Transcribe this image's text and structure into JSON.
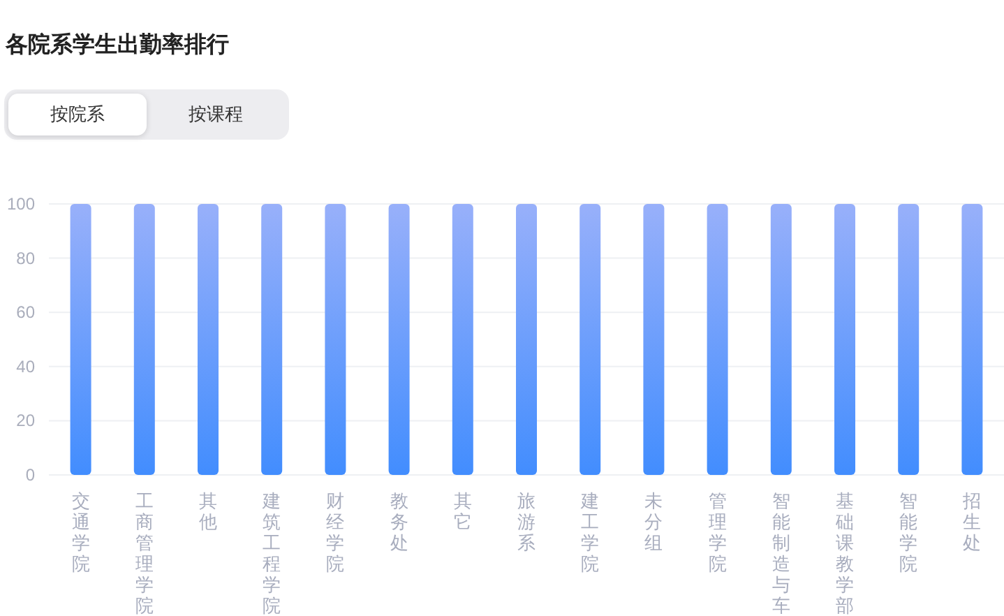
{
  "chart_data": {
    "type": "bar",
    "title": "各院系学生出勤率排行",
    "annotations": [
      "按院系",
      "按课程"
    ],
    "categories": [
      "交通学院",
      "工商管理学院",
      "其他",
      "建筑工程学院",
      "财经学院",
      "教务处",
      "其它",
      "旅游系",
      "建工学院",
      "未分组",
      "管理学院",
      "智能制造与车",
      "基础课教学部",
      "智能学院",
      "招生处"
    ],
    "series": [
      {
        "color": "#6f9efc",
        "values": [
          100,
          100,
          100,
          100,
          100,
          100,
          100,
          100,
          100,
          100,
          100,
          100,
          100,
          100,
          100
        ]
      }
    ],
    "ylim": [
      0,
      100
    ],
    "yticks": [
      0,
      20,
      40,
      60,
      80,
      100
    ],
    "grid": "y"
  }
}
